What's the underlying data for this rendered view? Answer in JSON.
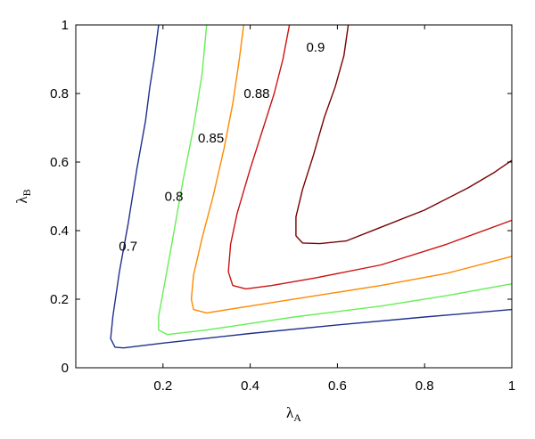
{
  "chart_data": {
    "type": "contour",
    "title": "",
    "xlabel": {
      "base": "λ",
      "sub": "A"
    },
    "ylabel": {
      "base": "λ",
      "sub": "B"
    },
    "xlim": [
      0,
      1
    ],
    "ylim": [
      0,
      1
    ],
    "xticks": [
      {
        "value": 0.2,
        "label": "0.2"
      },
      {
        "value": 0.4,
        "label": "0.4"
      },
      {
        "value": 0.6,
        "label": "0.6"
      },
      {
        "value": 0.8,
        "label": "0.8"
      },
      {
        "value": 1.0,
        "label": "1"
      }
    ],
    "yticks": [
      {
        "value": 0.0,
        "label": "0"
      },
      {
        "value": 0.2,
        "label": "0.2"
      },
      {
        "value": 0.4,
        "label": "0.4"
      },
      {
        "value": 0.6,
        "label": "0.6"
      },
      {
        "value": 0.8,
        "label": "0.8"
      },
      {
        "value": 1.0,
        "label": "1"
      }
    ],
    "grid": false,
    "contours": [
      {
        "level": "0.7",
        "color": "#1f2f8c",
        "points": [
          [
            0.19,
            1.0
          ],
          [
            0.18,
            0.9
          ],
          [
            0.17,
            0.82
          ],
          [
            0.16,
            0.72
          ],
          [
            0.14,
            0.58
          ],
          [
            0.12,
            0.42
          ],
          [
            0.1,
            0.28
          ],
          [
            0.085,
            0.15
          ],
          [
            0.08,
            0.085
          ],
          [
            0.09,
            0.06
          ],
          [
            0.11,
            0.058
          ],
          [
            0.2,
            0.072
          ],
          [
            0.4,
            0.1
          ],
          [
            0.6,
            0.125
          ],
          [
            0.8,
            0.148
          ],
          [
            1.0,
            0.17
          ]
        ],
        "label_pos": [
          0.12,
          0.355
        ]
      },
      {
        "level": "0.8",
        "color": "#66ee55",
        "points": [
          [
            0.3,
            1.0
          ],
          [
            0.29,
            0.86
          ],
          [
            0.27,
            0.7
          ],
          [
            0.245,
            0.54
          ],
          [
            0.22,
            0.36
          ],
          [
            0.2,
            0.22
          ],
          [
            0.19,
            0.15
          ],
          [
            0.19,
            0.11
          ],
          [
            0.21,
            0.097
          ],
          [
            0.3,
            0.11
          ],
          [
            0.5,
            0.148
          ],
          [
            0.7,
            0.18
          ],
          [
            0.85,
            0.21
          ],
          [
            1.0,
            0.245
          ]
        ],
        "label_pos": [
          0.225,
          0.5
        ]
      },
      {
        "level": "0.85",
        "color": "#ff8800",
        "points": [
          [
            0.385,
            1.0
          ],
          [
            0.375,
            0.9
          ],
          [
            0.36,
            0.77
          ],
          [
            0.34,
            0.64
          ],
          [
            0.315,
            0.5
          ],
          [
            0.29,
            0.38
          ],
          [
            0.27,
            0.27
          ],
          [
            0.265,
            0.2
          ],
          [
            0.27,
            0.17
          ],
          [
            0.3,
            0.16
          ],
          [
            0.4,
            0.18
          ],
          [
            0.55,
            0.21
          ],
          [
            0.7,
            0.24
          ],
          [
            0.85,
            0.275
          ],
          [
            1.0,
            0.325
          ]
        ],
        "label_pos": [
          0.31,
          0.67
        ]
      },
      {
        "level": "0.88",
        "color": "#cc1111",
        "points": [
          [
            0.49,
            1.0
          ],
          [
            0.475,
            0.9
          ],
          [
            0.455,
            0.8
          ],
          [
            0.43,
            0.7
          ],
          [
            0.4,
            0.58
          ],
          [
            0.37,
            0.45
          ],
          [
            0.355,
            0.36
          ],
          [
            0.35,
            0.28
          ],
          [
            0.36,
            0.24
          ],
          [
            0.39,
            0.23
          ],
          [
            0.45,
            0.24
          ],
          [
            0.55,
            0.262
          ],
          [
            0.7,
            0.3
          ],
          [
            0.85,
            0.36
          ],
          [
            1.0,
            0.43
          ]
        ],
        "label_pos": [
          0.415,
          0.8
        ]
      },
      {
        "level": "0.9",
        "color": "#770000",
        "points": [
          [
            0.625,
            1.0
          ],
          [
            0.615,
            0.91
          ],
          [
            0.595,
            0.82
          ],
          [
            0.57,
            0.73
          ],
          [
            0.545,
            0.62
          ],
          [
            0.52,
            0.52
          ],
          [
            0.505,
            0.44
          ],
          [
            0.505,
            0.385
          ],
          [
            0.52,
            0.364
          ],
          [
            0.56,
            0.362
          ],
          [
            0.62,
            0.37
          ],
          [
            0.7,
            0.41
          ],
          [
            0.8,
            0.46
          ],
          [
            0.9,
            0.525
          ],
          [
            0.96,
            0.57
          ],
          [
            1.0,
            0.605
          ]
        ],
        "label_pos": [
          0.55,
          0.935
        ]
      }
    ]
  }
}
